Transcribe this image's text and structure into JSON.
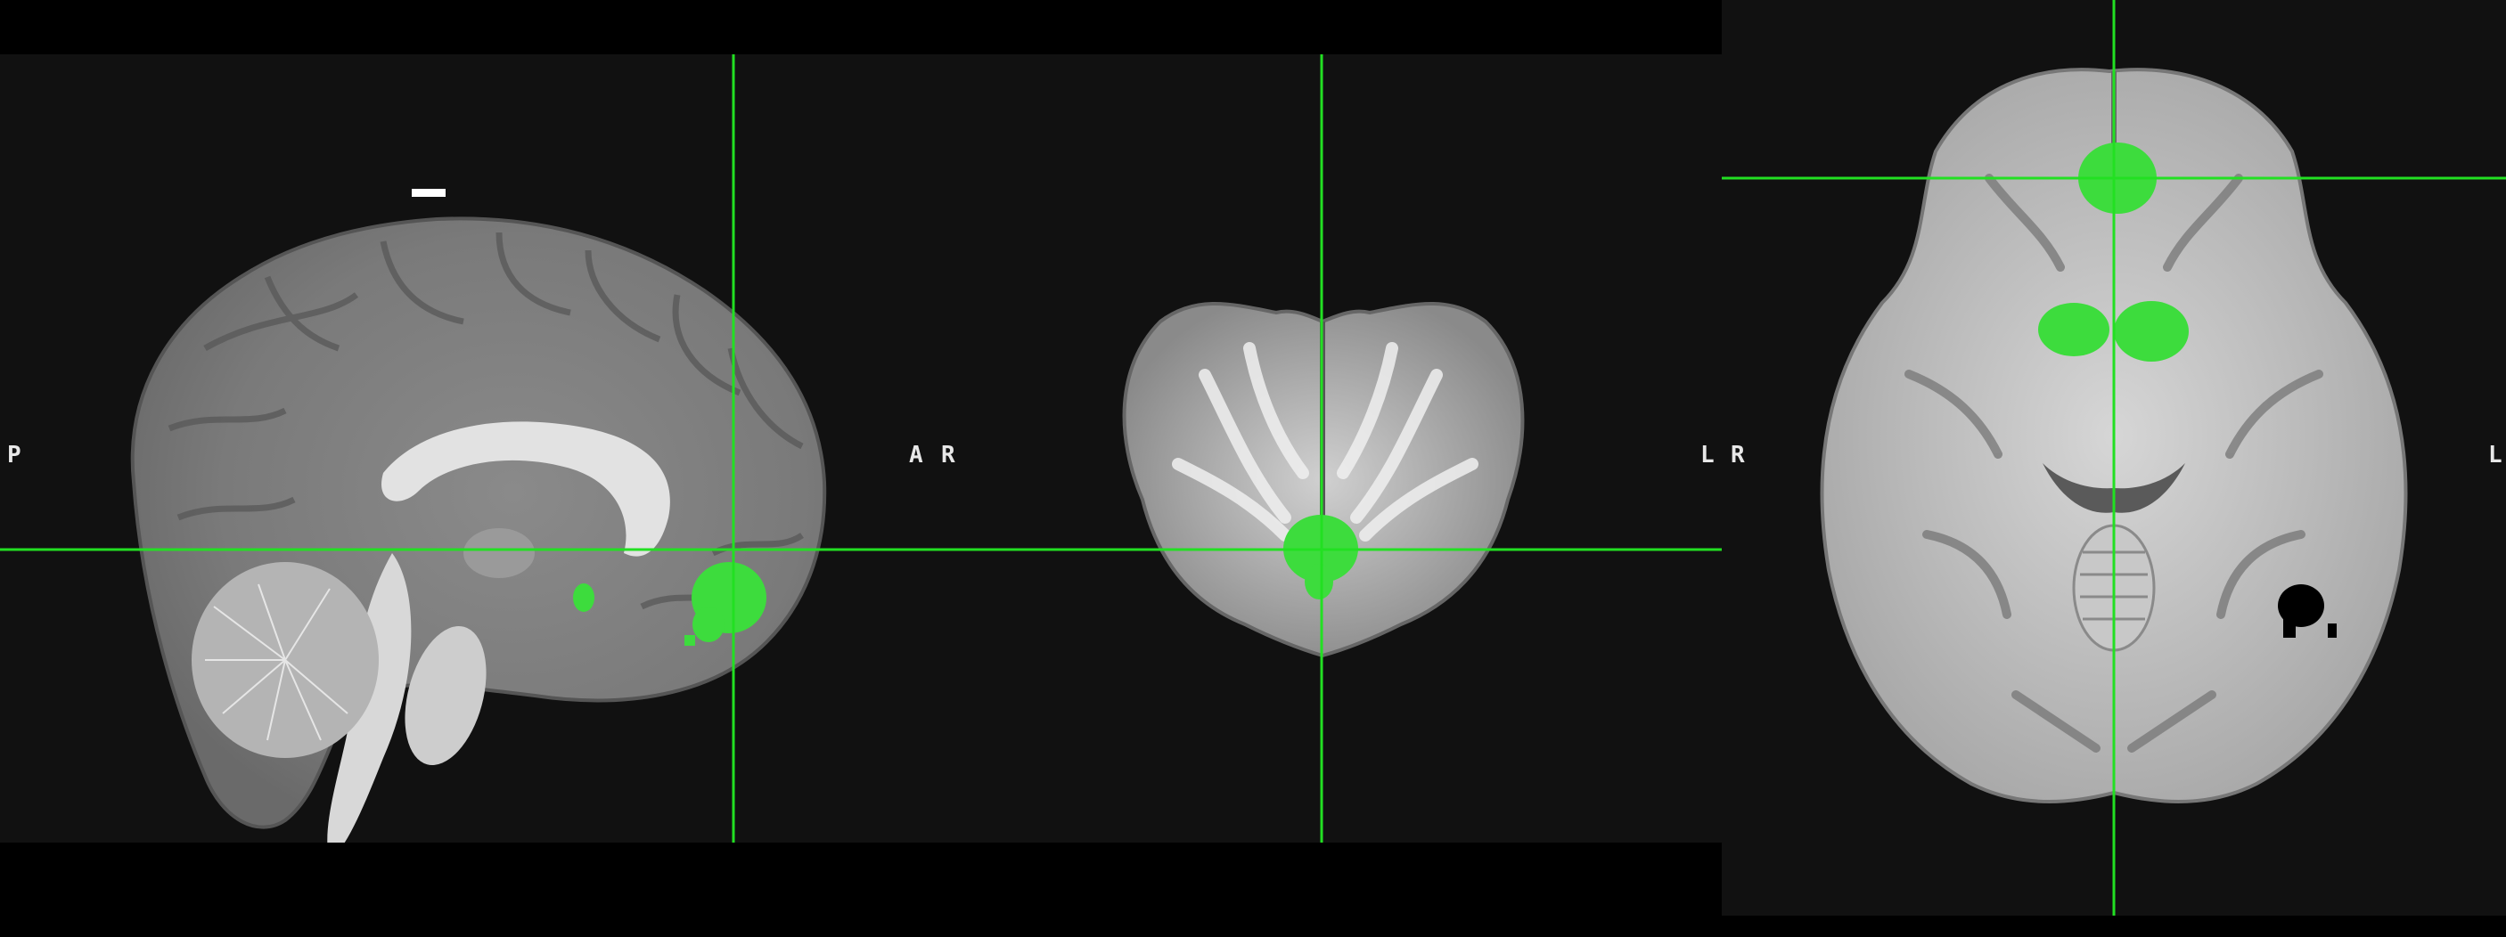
{
  "viewer": {
    "crosshair_color": "#22e022",
    "overlay_color": "#3ddc3d",
    "background_color": "#111111"
  },
  "views": {
    "sagittal": {
      "left_label": "P",
      "right_label": "A"
    },
    "coronal": {
      "left_label": "R",
      "right_label": "L"
    },
    "axial": {
      "left_label": "R",
      "right_label": "L"
    }
  }
}
